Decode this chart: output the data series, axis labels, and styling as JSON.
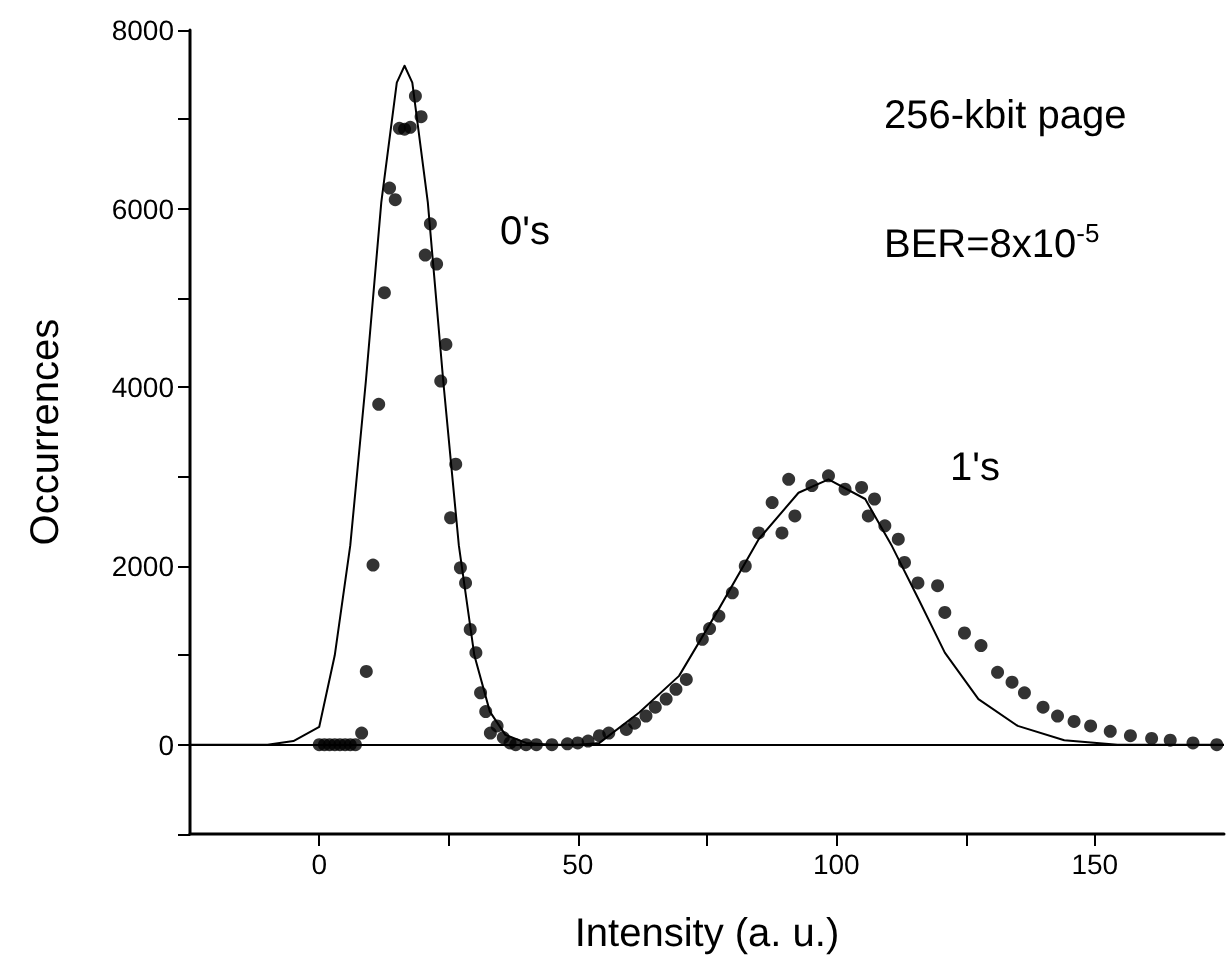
{
  "chart_data": {
    "type": "scatter",
    "xlabel": "Intensity (a. u.)",
    "ylabel": "Occurrences",
    "xlim": [
      -25,
      175
    ],
    "ylim": [
      -1000,
      8000
    ],
    "xticks": [
      0,
      {
        "value": 25,
        "label": null
      },
      50,
      {
        "value": 75,
        "label": null
      },
      100,
      {
        "value": 125,
        "label": null
      },
      150
    ],
    "yticks": [
      {
        "value": -1000,
        "label": null
      },
      0,
      {
        "value": 1000,
        "label": null
      },
      2000,
      {
        "value": 3000,
        "label": null
      },
      4000,
      {
        "value": 5000,
        "label": null
      },
      6000,
      {
        "value": 7000,
        "label": null
      },
      8000
    ],
    "grid": false,
    "ref_lines": [
      {
        "axis": "y",
        "value": 0,
        "color": "#000000"
      }
    ],
    "annotations": [
      "256-kbit page",
      "BER=8x10$^{-5}$",
      "0's",
      "1's"
    ],
    "series": [
      {
        "color": "#000000",
        "marker": "circle",
        "x": [
          0,
          1,
          2,
          3,
          4,
          5,
          6,
          7,
          8.2,
          9.1,
          10.4,
          11.5,
          12.6,
          13.6,
          14.7,
          15.5,
          16.5,
          17.6,
          18.6,
          19.7,
          20.5,
          21.5,
          22.7,
          23.5,
          24.5,
          25.4,
          26.4,
          27.3,
          28.3,
          29.2,
          30.3,
          31.2,
          32.2,
          33.1,
          34.4,
          35.6,
          36.9,
          38,
          40,
          42,
          45,
          48,
          50,
          52,
          54.2,
          56,
          59.4,
          61,
          63.2,
          65,
          67.1,
          69,
          71,
          74.1,
          75.5,
          77.3,
          79.9,
          82.4,
          85,
          87.6,
          89.5,
          90.8,
          92,
          95.3,
          98.5,
          101.7,
          104.9,
          106.2,
          107.4,
          109.4,
          112,
          113.2,
          115.8,
          119.6,
          121,
          124.8,
          128,
          131.2,
          134,
          136.4,
          140,
          142.8,
          146,
          149.2,
          153,
          156.9,
          161,
          164.6,
          169,
          173.6
        ],
        "values": [
          0,
          0,
          0,
          0,
          0,
          0,
          0,
          0,
          130,
          820,
          2010,
          3810,
          5060,
          6230,
          6100,
          6900,
          6890,
          6910,
          7260,
          7030,
          5480,
          5830,
          5380,
          4070,
          4480,
          2540,
          3140,
          1980,
          1810,
          1290,
          1030,
          580,
          370,
          130,
          210,
          80,
          20,
          0,
          0,
          0,
          0,
          10,
          20,
          40,
          100,
          130,
          170,
          240,
          320,
          420,
          510,
          620,
          730,
          1180,
          1300,
          1440,
          1700,
          2000,
          2370,
          2710,
          2370,
          2970,
          2560,
          2900,
          3010,
          2860,
          2880,
          2560,
          2750,
          2450,
          2300,
          2040,
          1810,
          1780,
          1480,
          1250,
          1110,
          810,
          700,
          580,
          420,
          320,
          260,
          210,
          150,
          100,
          70,
          50,
          20,
          0
        ]
      },
      {
        "type": "line",
        "color": "#000000",
        "marker": "none",
        "line_style": "solid",
        "x": [
          -25,
          -10,
          -5,
          0,
          3,
          6,
          9,
          12,
          15,
          16.5,
          18,
          21,
          24,
          27,
          30,
          33,
          36,
          40,
          45,
          50,
          54.2,
          61.9,
          69.6,
          77.3,
          85,
          92.7,
          98.5,
          105.6,
          110.8,
          115.9,
          121,
          127.5,
          135.1,
          144.1,
          154.4,
          175
        ],
        "values": [
          0,
          0,
          40,
          200,
          1000,
          2230,
          4060,
          6070,
          7410,
          7600,
          7410,
          6070,
          4060,
          2230,
          1000,
          370,
          110,
          20,
          0,
          0,
          20,
          360,
          770,
          1520,
          2300,
          2820,
          2970,
          2750,
          2220,
          1630,
          1030,
          510,
          210,
          50,
          0,
          0
        ]
      }
    ]
  }
}
